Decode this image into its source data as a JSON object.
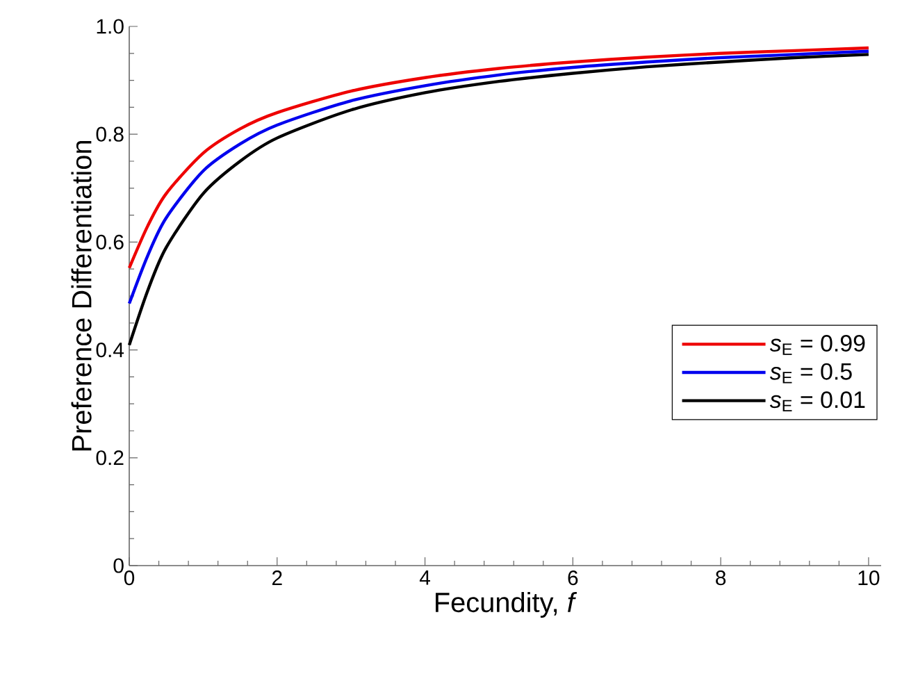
{
  "chart_data": {
    "type": "line",
    "xlabel": "Fecundity, *f*",
    "ylabel": "Preference Differentiation",
    "x": [
      0,
      0.25,
      0.5,
      1,
      1.5,
      2,
      3,
      4,
      5,
      6,
      7,
      8,
      9,
      10
    ],
    "series": [
      {
        "name": "*s*$_{E}$ = 0.99",
        "color": "#ee0000",
        "values": [
          0.552,
          0.63,
          0.69,
          0.765,
          0.81,
          0.84,
          0.88,
          0.905,
          0.922,
          0.934,
          0.943,
          0.95,
          0.955,
          0.96
        ]
      },
      {
        "name": "*s*$_{E}$ = 0.5",
        "color": "#0000ee",
        "values": [
          0.486,
          0.575,
          0.645,
          0.732,
          0.782,
          0.817,
          0.862,
          0.89,
          0.91,
          0.924,
          0.934,
          0.942,
          0.948,
          0.954
        ]
      },
      {
        "name": "*s*$_{E}$ = 0.01",
        "color": "#000000",
        "values": [
          0.409,
          0.51,
          0.59,
          0.69,
          0.75,
          0.793,
          0.845,
          0.877,
          0.898,
          0.913,
          0.925,
          0.934,
          0.942,
          0.948
        ]
      }
    ],
    "xlim": [
      0,
      10.17
    ],
    "ylim": [
      0,
      1
    ],
    "xticks": [
      0,
      2,
      4,
      6,
      8,
      10
    ],
    "yticks": [
      0,
      0.2,
      0.4,
      0.6,
      0.8,
      {
        "value": 1,
        "label": "1.0"
      }
    ],
    "legend": "right",
    "line_style": "solid"
  }
}
